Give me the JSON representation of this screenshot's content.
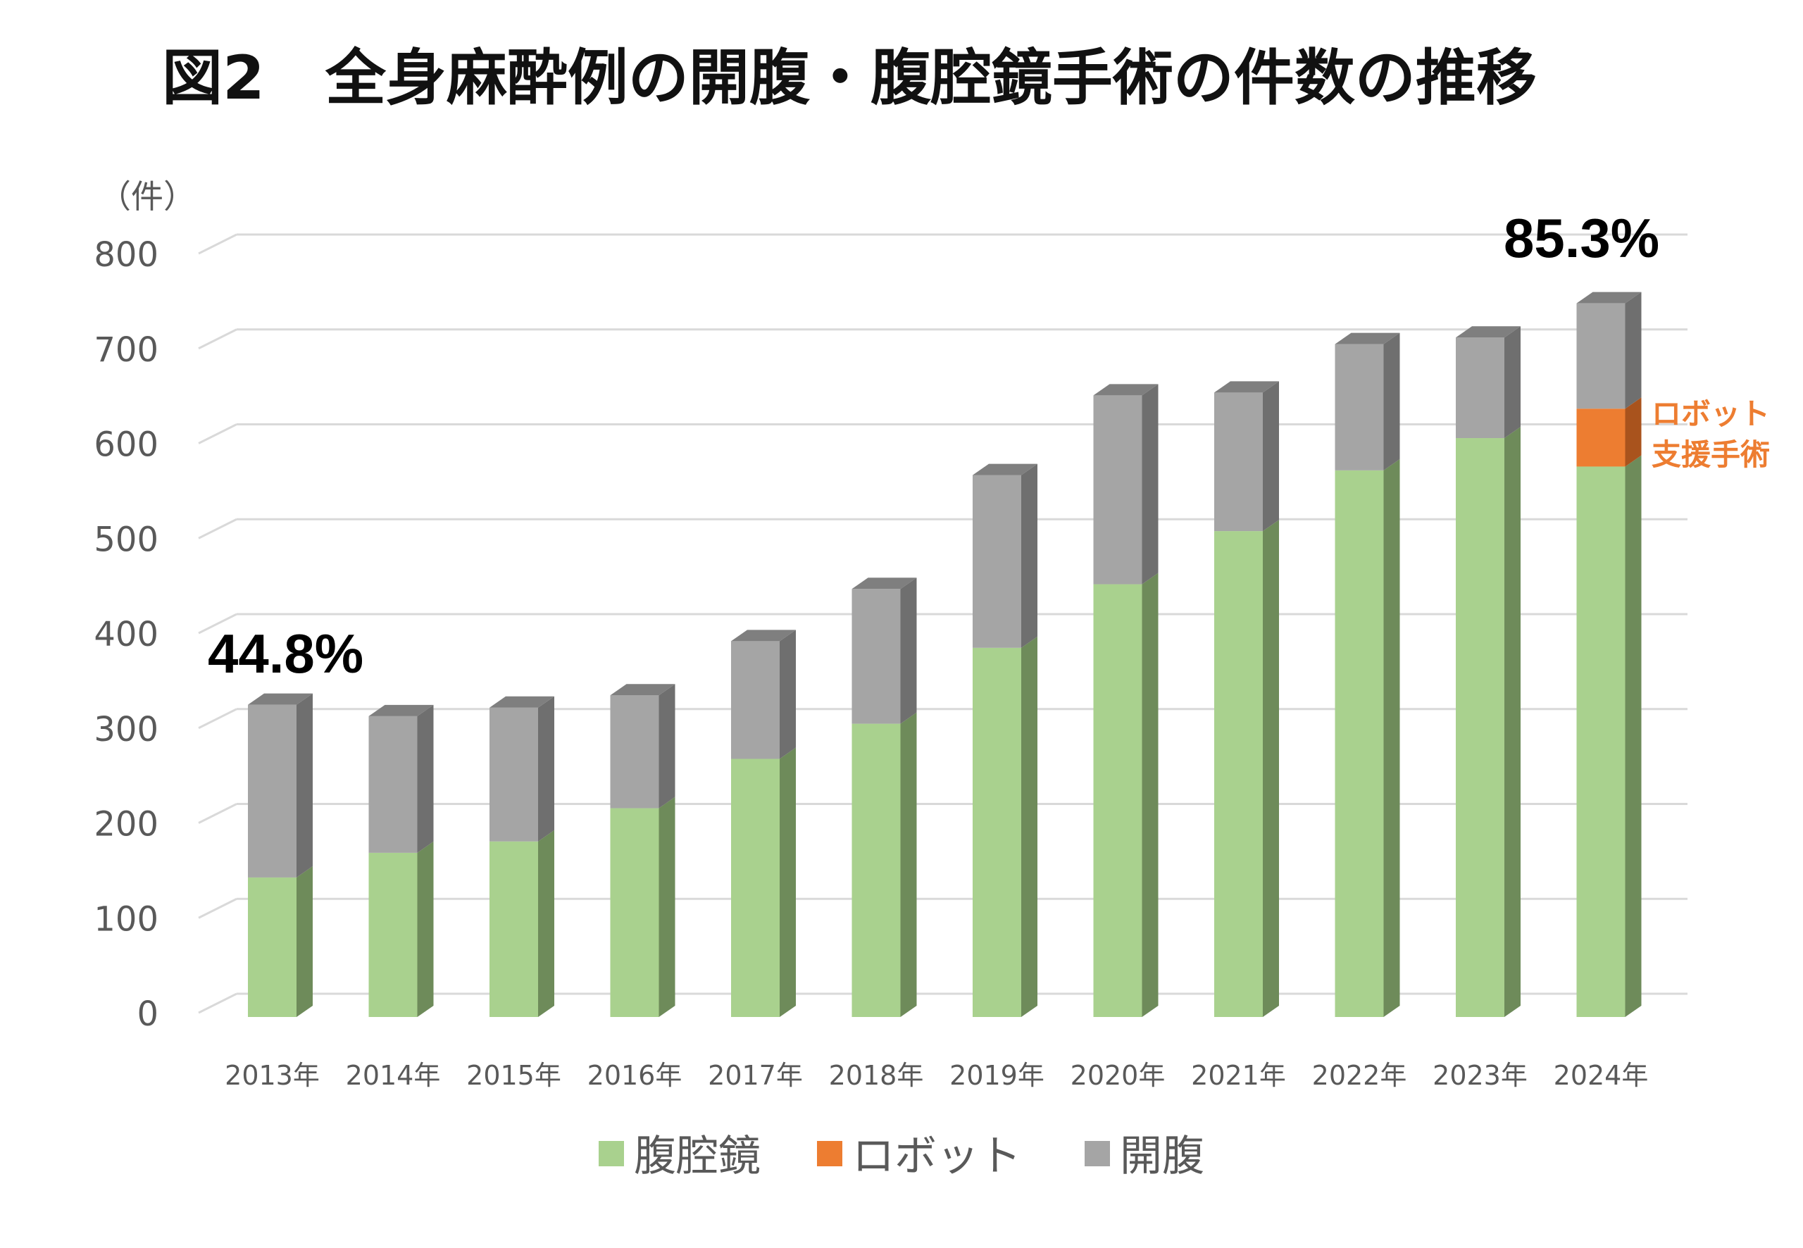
{
  "chart_data": {
    "type": "bar",
    "stacked": true,
    "title": "図2　全身麻酔例の開腹・腹腔鏡手術の件数の推移",
    "ylabel": "（件）",
    "xlabel": "",
    "ylim": [
      0,
      800
    ],
    "yticks": [
      "0",
      "100",
      "200",
      "300",
      "400",
      "500",
      "600",
      "700",
      "800"
    ],
    "grid": true,
    "legend_position": "bottom",
    "categories": [
      "2013年",
      "2014年",
      "2015年",
      "2016年",
      "2017年",
      "2018年",
      "2019年",
      "2020年",
      "2021年",
      "2022年",
      "2023年",
      "2024年"
    ],
    "series": [
      {
        "name": "腹腔鏡",
        "color": "#A9D18E",
        "side_color": "#6E8B5A",
        "values": [
          147,
          173,
          185,
          220,
          272,
          309,
          389,
          456,
          512,
          576,
          610,
          580
        ]
      },
      {
        "name": "ロボット",
        "color": "#ED7D31",
        "side_color": "#A9531D",
        "values": [
          0,
          0,
          0,
          0,
          0,
          0,
          0,
          0,
          0,
          0,
          0,
          61
        ]
      },
      {
        "name": "開腹",
        "color": "#A5A5A5",
        "side_color": "#6F6F6F",
        "values": [
          182,
          144,
          141,
          119,
          124,
          142,
          182,
          199,
          146,
          133,
          106,
          111
        ]
      }
    ],
    "annotations": [
      {
        "text": "44.8%",
        "category": "2013年"
      },
      {
        "text": "85.3%",
        "category": "2024年"
      },
      {
        "text_lines": [
          "ロボット",
          "支援手術"
        ],
        "category": "2024年"
      }
    ]
  }
}
